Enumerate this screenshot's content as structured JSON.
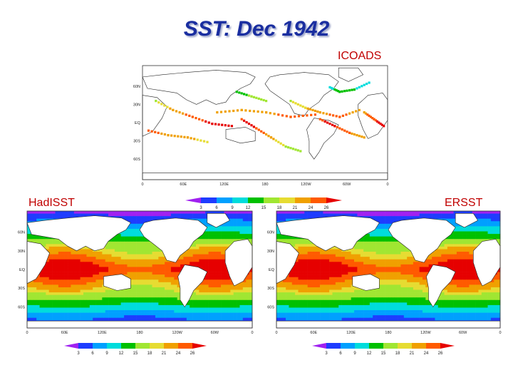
{
  "title": "SST: Dec 1942",
  "panels": {
    "icoads": {
      "label": "ICOADS",
      "lat_labels": [
        "60N",
        "30N",
        "EQ",
        "30S",
        "60S"
      ],
      "lon_labels": [
        "0",
        "60E",
        "120E",
        "180",
        "120W",
        "60W",
        "0"
      ]
    },
    "hadisst": {
      "label": "HadISST",
      "lat_labels": [
        "60N",
        "30N",
        "EQ",
        "30S",
        "60S"
      ],
      "lon_labels": [
        "0",
        "60E",
        "120E",
        "180",
        "120W",
        "60W",
        "0"
      ]
    },
    "ersst": {
      "label": "ERSST",
      "lat_labels": [
        "60N",
        "30N",
        "EQ",
        "30S",
        "60S"
      ],
      "lon_labels": [
        "0",
        "60E",
        "120E",
        "180",
        "120W",
        "60W",
        "0"
      ]
    }
  },
  "colorbar": {
    "ticks": [
      "3",
      "6",
      "9",
      "12",
      "15",
      "18",
      "21",
      "24",
      "26"
    ],
    "colors": [
      "#a020f0",
      "#1e3cff",
      "#00a0ff",
      "#00dcdc",
      "#00c000",
      "#a0e632",
      "#e6dc32",
      "#f0a000",
      "#ff5a00",
      "#e60000"
    ]
  }
}
